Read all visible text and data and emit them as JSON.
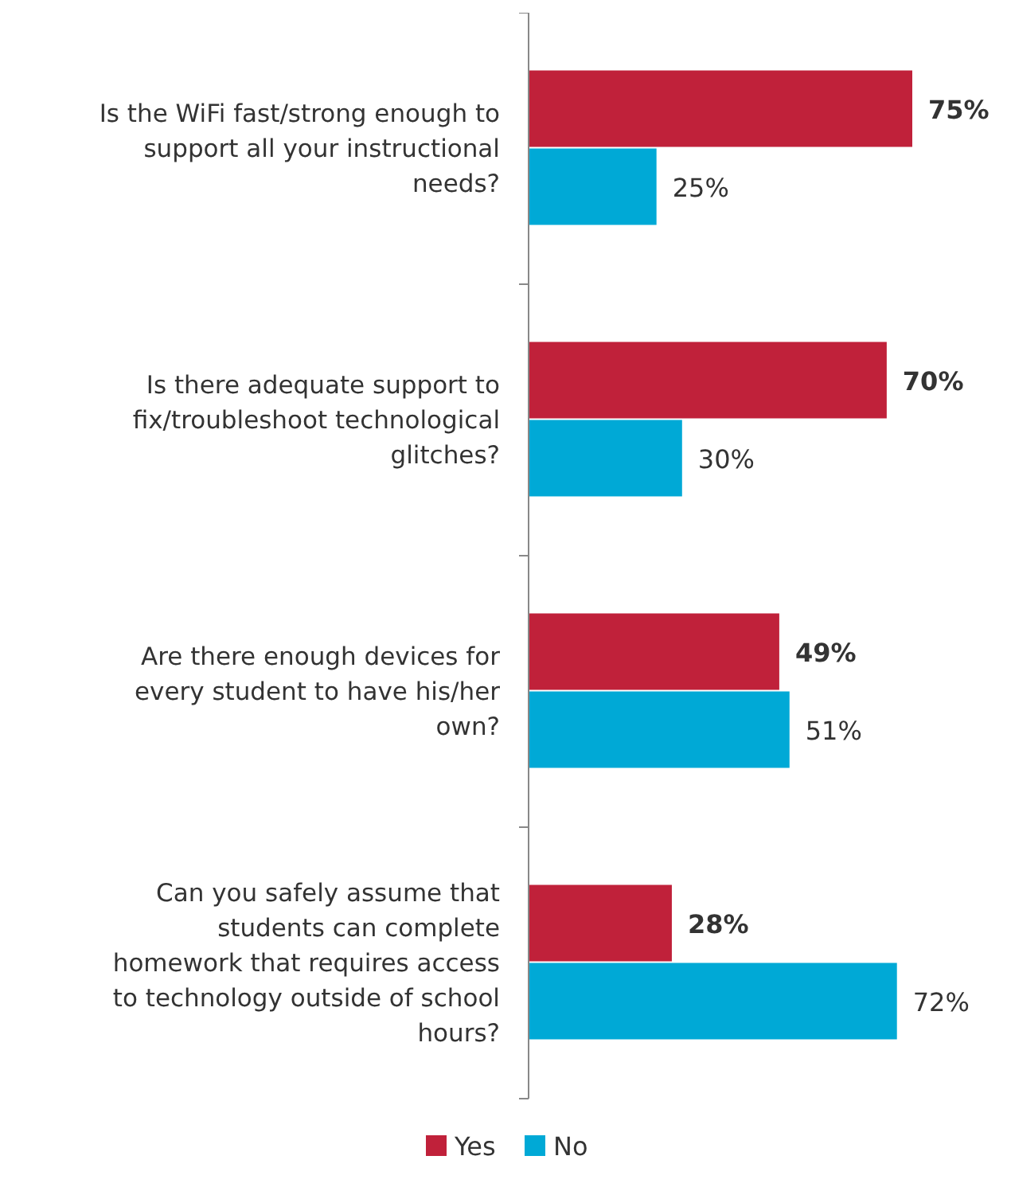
{
  "chart_data": {
    "type": "bar",
    "orientation": "horizontal",
    "legend": "bottom",
    "grid": false,
    "categories": [
      "Is the WiFi fast/strong enough to support all your instructional needs?",
      "Is there adequate support to fix/troubleshoot technological glitches?",
      "Are there enough devices for every student to have his/her own?",
      "Can you safely assume that students can complete homework that requires access to technology outside of school hours?"
    ],
    "series": [
      {
        "name": "Yes",
        "color": "#c0213a",
        "values": [
          75,
          70,
          49,
          28
        ],
        "value_labels": [
          "75%",
          "70%",
          "49%",
          "28%"
        ]
      },
      {
        "name": "No",
        "color": "#00a9d6",
        "values": [
          25,
          30,
          51,
          72
        ],
        "value_labels": [
          "25%",
          "30%",
          "51%",
          "72%"
        ]
      }
    ]
  }
}
